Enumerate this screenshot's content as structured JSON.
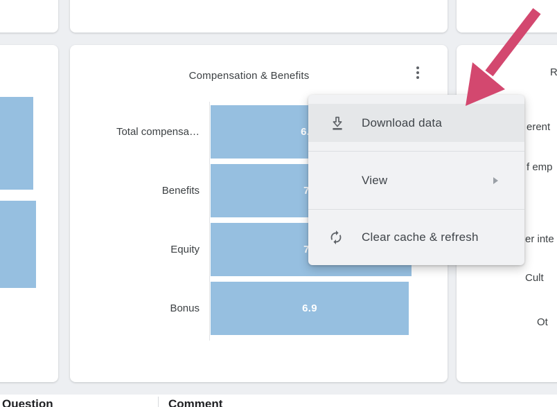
{
  "app": {
    "background_color": "#edeff2",
    "card_color": "#ffffff"
  },
  "center_card": {
    "title": "Compensation & Benefits",
    "chart_data": {
      "type": "bar",
      "orientation": "horizontal",
      "title": "Compensation & Benefits",
      "categories": [
        "Total compensa…",
        "Benefits",
        "Equity",
        "Bonus"
      ],
      "values": [
        6.8,
        7.0,
        7.0,
        6.9
      ],
      "value_labels": [
        "6.8",
        "7.0",
        "7.0",
        "6.9"
      ],
      "visible_value_fragments": [
        "6",
        "",
        "7",
        "6.9"
      ],
      "bar_color": "#96bfe0",
      "value_label_color": "#ffffff",
      "xlim": [
        0,
        8
      ],
      "grid": false,
      "legend": "none"
    }
  },
  "context_menu": {
    "background": "#f1f2f4",
    "highlight_color": "#e5e7e9",
    "items": [
      {
        "label": "Download data",
        "icon": "download-icon",
        "state": "hovered",
        "has_submenu": false
      },
      {
        "label": "View",
        "icon": null,
        "state": "normal",
        "has_submenu": true
      },
      {
        "label": "Clear cache & refresh",
        "icon": "refresh-icon",
        "state": "normal",
        "has_submenu": false
      }
    ]
  },
  "left_card": {
    "chart_fragment": {
      "type": "bar",
      "orientation": "horizontal",
      "visible_bar_count": 2,
      "bar_color": "#96bfe0"
    }
  },
  "right_card": {
    "title_fragment": "R",
    "label_fragments": [
      "erent",
      "f emp",
      "er inte",
      "Cult",
      "Ot"
    ]
  },
  "bottom_table": {
    "headers": [
      "Question",
      "Comment"
    ]
  },
  "annotation_arrow": {
    "color": "#d3486f",
    "points_to": "Download data"
  }
}
